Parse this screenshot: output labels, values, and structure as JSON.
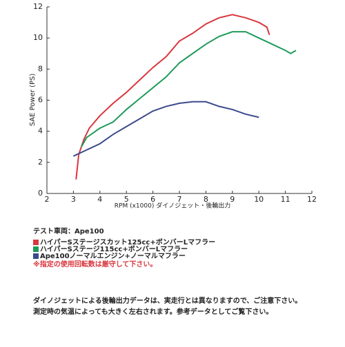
{
  "chart_data": {
    "type": "line",
    "x_label": "RPM (x1000) ダイノジェット・後輪出力",
    "y_label": "SAE Power (PS)",
    "xlim": [
      2,
      12
    ],
    "xticks": [
      2,
      3,
      4,
      5,
      6,
      7,
      8,
      9,
      10,
      11,
      12
    ],
    "ylim": [
      0,
      12
    ],
    "yticks": [
      0,
      2,
      4,
      6,
      8,
      10,
      12
    ],
    "legend_title": "テスト車両：Ape100",
    "series": [
      {
        "name": "ハイパーSステージスカット125cc+ボンバーLマフラー",
        "color": "#d9363e",
        "x": [
          3.1,
          3.2,
          3.4,
          3.6,
          4,
          4.5,
          5,
          5.5,
          6,
          6.5,
          7,
          7.5,
          8,
          8.5,
          9,
          9.5,
          10,
          10.3,
          10.4
        ],
        "values": [
          0.9,
          2.5,
          3.5,
          4.2,
          5,
          5.8,
          6.5,
          7.3,
          8.1,
          8.8,
          9.8,
          10.3,
          10.9,
          11.3,
          11.5,
          11.3,
          11,
          10.7,
          10.2
        ]
      },
      {
        "name": "ハイパーSステージ115cc+ボンバーLマフラー",
        "color": "#1e9a5a",
        "x": [
          3.3,
          3.5,
          4,
          4.5,
          5,
          5.5,
          6,
          6.5,
          7,
          7.5,
          8,
          8.5,
          9,
          9.5,
          10,
          10.5,
          11,
          11.2,
          11.4
        ],
        "values": [
          3,
          3.6,
          4.2,
          4.6,
          5.4,
          6.1,
          6.8,
          7.5,
          8.4,
          9,
          9.6,
          10.1,
          10.4,
          10.4,
          10,
          9.6,
          9.2,
          9,
          9.2
        ]
      },
      {
        "name": "Ape100ノーマルエンジン+ノーマルマフラー",
        "color": "#3a4a8c",
        "x": [
          3,
          3.5,
          4,
          4.5,
          5,
          5.5,
          6,
          6.5,
          7,
          7.5,
          8,
          8.5,
          9,
          9.5,
          10
        ],
        "values": [
          2.4,
          2.8,
          3.2,
          3.8,
          4.3,
          4.8,
          5.3,
          5.6,
          5.8,
          5.9,
          5.9,
          5.6,
          5.4,
          5.1,
          4.9
        ]
      }
    ],
    "warning": "※指定の使用回転数は厳守して下さい。",
    "footnote": [
      "ダイノジェットによる後輪出力データは、実走行とは異なりますので、ご注意下さい。",
      "測定時の気温によっても大きく左右されます。参考データとしてご覧下さい。"
    ]
  }
}
